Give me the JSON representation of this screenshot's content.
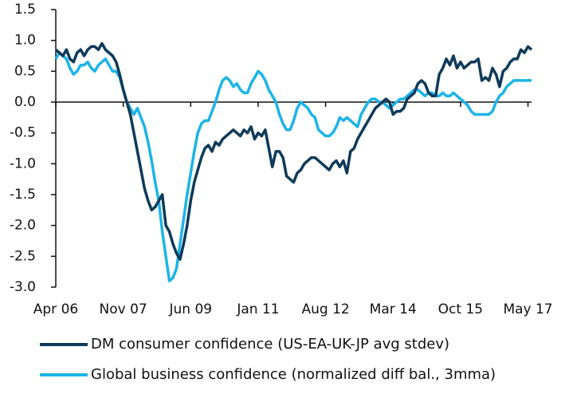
{
  "chart_data": {
    "type": "line",
    "categories": [
      "Apr 06",
      null,
      null,
      null,
      null,
      null,
      null,
      null,
      null,
      null,
      null,
      null,
      null,
      null,
      null,
      null,
      null,
      null,
      null,
      "Nov 07",
      null,
      null,
      null,
      null,
      null,
      null,
      null,
      null,
      null,
      null,
      null,
      null,
      null,
      null,
      null,
      null,
      null,
      null,
      "Jun 09",
      null,
      null,
      null,
      null,
      null,
      null,
      null,
      null,
      null,
      null,
      null,
      null,
      null,
      null,
      null,
      null,
      null,
      null,
      "Jan 11",
      null,
      null,
      null,
      null,
      null,
      null,
      null,
      null,
      null,
      null,
      null,
      null,
      null,
      null,
      null,
      null,
      null,
      null,
      "Aug 12",
      null,
      null,
      null,
      null,
      null,
      null,
      null,
      null,
      null,
      null,
      null,
      null,
      null,
      null,
      null,
      null,
      null,
      null,
      "Mar 14",
      null,
      null,
      null,
      null,
      null,
      null,
      null,
      null,
      null,
      null,
      null,
      null,
      null,
      null,
      null,
      null,
      null,
      null,
      "Oct 15",
      null,
      null,
      null,
      null,
      null,
      null,
      null,
      null,
      null,
      null,
      null,
      null,
      null,
      null,
      null,
      null,
      null,
      null,
      "May 17",
      null
    ],
    "series": [
      {
        "name": "DM consumer confidence (US-EA-UK-JP avg stdev)",
        "color": "#0f3a5a",
        "values": [
          0.85,
          0.8,
          0.75,
          0.85,
          0.7,
          0.65,
          0.8,
          0.85,
          0.75,
          0.85,
          0.9,
          0.9,
          0.85,
          0.95,
          0.85,
          0.8,
          0.75,
          0.65,
          0.45,
          0.2,
          0.0,
          -0.2,
          -0.5,
          -0.8,
          -1.1,
          -1.4,
          -1.6,
          -1.75,
          -1.7,
          -1.6,
          -1.5,
          -2.0,
          -2.1,
          -2.3,
          -2.45,
          -2.55,
          -2.3,
          -2.0,
          -1.6,
          -1.3,
          -1.1,
          -0.9,
          -0.75,
          -0.7,
          -0.8,
          -0.65,
          -0.7,
          -0.6,
          -0.55,
          -0.5,
          -0.45,
          -0.5,
          -0.55,
          -0.45,
          -0.5,
          -0.4,
          -0.6,
          -0.5,
          -0.55,
          -0.45,
          -0.75,
          -1.05,
          -0.8,
          -0.8,
          -0.9,
          -1.2,
          -1.25,
          -1.3,
          -1.15,
          -1.1,
          -1.0,
          -0.95,
          -0.9,
          -0.9,
          -0.95,
          -1.0,
          -1.05,
          -1.1,
          -1.0,
          -0.95,
          -1.05,
          -0.95,
          -1.15,
          -0.8,
          -0.75,
          -0.6,
          -0.5,
          -0.4,
          -0.3,
          -0.2,
          -0.1,
          -0.05,
          0.0,
          0.05,
          0.0,
          -0.2,
          -0.15,
          -0.15,
          -0.1,
          0.05,
          0.1,
          0.15,
          0.3,
          0.35,
          0.3,
          0.15,
          0.1,
          0.1,
          0.45,
          0.55,
          0.7,
          0.6,
          0.75,
          0.55,
          0.65,
          0.55,
          0.6,
          0.65,
          0.65,
          0.7,
          0.35,
          0.4,
          0.35,
          0.55,
          0.45,
          0.25,
          0.5,
          0.55,
          0.65,
          0.7,
          0.7,
          0.85,
          0.8,
          0.9,
          0.85
        ]
      },
      {
        "name": "Global business confidence (normalized diff bal., 3mma)",
        "color": "#1db4e8",
        "values": [
          0.7,
          0.8,
          0.75,
          0.7,
          0.55,
          0.45,
          0.5,
          0.6,
          0.6,
          0.65,
          0.55,
          0.5,
          0.6,
          0.65,
          0.7,
          0.6,
          0.5,
          0.5,
          0.4,
          0.2,
          0.0,
          -0.1,
          -0.2,
          -0.1,
          -0.25,
          -0.4,
          -0.65,
          -0.95,
          -1.3,
          -1.6,
          -2.1,
          -2.5,
          -2.9,
          -2.85,
          -2.7,
          -2.3,
          -1.9,
          -1.5,
          -1.15,
          -0.8,
          -0.5,
          -0.35,
          -0.3,
          -0.3,
          -0.15,
          0.0,
          0.2,
          0.35,
          0.4,
          0.35,
          0.25,
          0.3,
          0.2,
          0.15,
          0.15,
          0.3,
          0.4,
          0.5,
          0.45,
          0.35,
          0.2,
          0.1,
          0.0,
          -0.2,
          -0.35,
          -0.45,
          -0.45,
          -0.3,
          -0.1,
          0.0,
          -0.05,
          -0.1,
          -0.2,
          -0.25,
          -0.45,
          -0.5,
          -0.55,
          -0.55,
          -0.5,
          -0.4,
          -0.25,
          -0.3,
          -0.25,
          -0.3,
          -0.35,
          -0.4,
          -0.2,
          -0.1,
          0.0,
          0.05,
          0.05,
          0.0,
          0.0,
          -0.05,
          -0.1,
          -0.05,
          0.0,
          0.05,
          0.05,
          0.1,
          0.15,
          0.2,
          0.2,
          0.15,
          0.1,
          0.15,
          0.15,
          0.1,
          0.1,
          0.15,
          0.1,
          0.1,
          0.15,
          0.1,
          0.05,
          0.0,
          -0.05,
          -0.15,
          -0.2,
          -0.2,
          -0.2,
          -0.2,
          -0.2,
          -0.15,
          0.0,
          0.1,
          0.15,
          0.25,
          0.3,
          0.35,
          0.35,
          0.35,
          0.35,
          0.35,
          0.35
        ]
      }
    ],
    "ylim": [
      -3.0,
      1.5
    ],
    "yticks": [
      {
        "value": 1.5,
        "label": "1.5"
      },
      {
        "value": 1.0,
        "label": "1.0"
      },
      0.5,
      {
        "value": 0.0,
        "label": "0.0"
      },
      -0.5,
      {
        "value": -1.0,
        "label": "-1.0"
      },
      -1.5,
      {
        "value": -2.0,
        "label": "-2.0"
      },
      -2.5,
      {
        "value": -3.0,
        "label": "-3.0"
      }
    ],
    "legend": "bottom"
  }
}
